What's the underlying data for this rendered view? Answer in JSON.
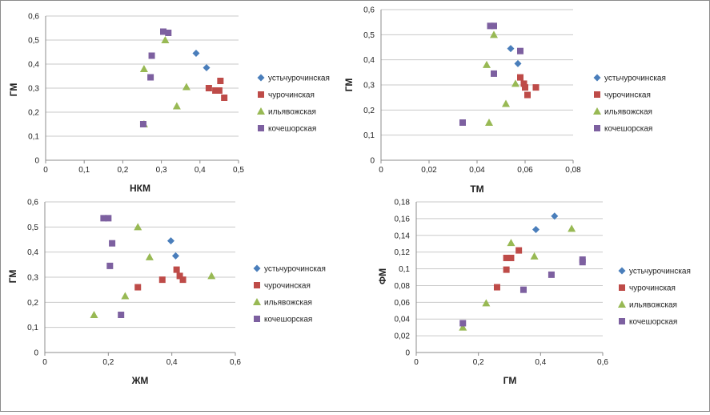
{
  "colors": {
    "устьчурочинская": "#4a7ebb",
    "чурочинская": "#be4b48",
    "ильявожская": "#98b954",
    "кочешорская": "#7d60a0",
    "grid": "#c9c9c9",
    "axis": "#8c8c8c"
  },
  "markers": {
    "устьчурочинская": "diamond",
    "чурочинская": "square",
    "ильявожская": "triangle",
    "кочешорская": "square"
  },
  "chart_data": [
    {
      "type": "scatter",
      "xlabel": "НКМ",
      "ylabel": "ГМ",
      "xlim": [
        0,
        0.5
      ],
      "ylim": [
        0,
        0.6
      ],
      "xticks": [
        "0",
        "0,1",
        "0,2",
        "0,3",
        "0,4",
        "0,5"
      ],
      "yticks": [
        "0",
        "0,1",
        "0,2",
        "0,3",
        "0,4",
        "0,5",
        "0,6"
      ],
      "grid": "horizontal",
      "legend": "right",
      "series": [
        {
          "name": "устьчурочинская",
          "points": [
            [
              0.39,
              0.445
            ],
            [
              0.417,
              0.385
            ]
          ]
        },
        {
          "name": "чурочинская",
          "points": [
            [
              0.423,
              0.3
            ],
            [
              0.44,
              0.29
            ],
            [
              0.45,
              0.29
            ],
            [
              0.453,
              0.33
            ],
            [
              0.463,
              0.26
            ]
          ]
        },
        {
          "name": "ильявожская",
          "points": [
            [
              0.255,
              0.15
            ],
            [
              0.255,
              0.38
            ],
            [
              0.31,
              0.5
            ],
            [
              0.34,
              0.225
            ],
            [
              0.365,
              0.305
            ]
          ]
        },
        {
          "name": "кочешорская",
          "points": [
            [
              0.253,
              0.15
            ],
            [
              0.272,
              0.345
            ],
            [
              0.275,
              0.435
            ],
            [
              0.305,
              0.535
            ],
            [
              0.318,
              0.53
            ]
          ]
        }
      ]
    },
    {
      "type": "scatter",
      "xlabel": "ТМ",
      "ylabel": "ГМ",
      "xlim": [
        0,
        0.08
      ],
      "ylim": [
        0,
        0.6
      ],
      "xticks": [
        "0",
        "0,02",
        "0,04",
        "0,06",
        "0,08"
      ],
      "yticks": [
        "0",
        "0,1",
        "0,2",
        "0,3",
        "0,4",
        "0,5",
        "0,6"
      ],
      "grid": "horizontal",
      "legend": "right",
      "series": [
        {
          "name": "устьчурочинская",
          "points": [
            [
              0.054,
              0.445
            ],
            [
              0.057,
              0.385
            ]
          ]
        },
        {
          "name": "чурочинская",
          "points": [
            [
              0.058,
              0.33
            ],
            [
              0.0595,
              0.305
            ],
            [
              0.06,
              0.29
            ],
            [
              0.061,
              0.26
            ],
            [
              0.0645,
              0.29
            ]
          ]
        },
        {
          "name": "ильявожская",
          "points": [
            [
              0.044,
              0.38
            ],
            [
              0.045,
              0.15
            ],
            [
              0.047,
              0.5
            ],
            [
              0.052,
              0.225
            ],
            [
              0.056,
              0.305
            ]
          ]
        },
        {
          "name": "кочешорская",
          "points": [
            [
              0.034,
              0.15
            ],
            [
              0.0455,
              0.535
            ],
            [
              0.047,
              0.535
            ],
            [
              0.047,
              0.345
            ],
            [
              0.058,
              0.435
            ]
          ]
        }
      ]
    },
    {
      "type": "scatter",
      "xlabel": "ЖМ",
      "ylabel": "ГМ",
      "xlim": [
        0,
        0.6
      ],
      "ylim": [
        0,
        0.6
      ],
      "xticks": [
        "0",
        "0,2",
        "0,4",
        "0,6"
      ],
      "yticks": [
        "0",
        "0,1",
        "0,2",
        "0,3",
        "0,4",
        "0,5",
        "0,6"
      ],
      "grid": "horizontal",
      "legend": "right",
      "series": [
        {
          "name": "устьчурочинская",
          "points": [
            [
              0.397,
              0.445
            ],
            [
              0.412,
              0.385
            ]
          ]
        },
        {
          "name": "чурочинская",
          "points": [
            [
              0.293,
              0.26
            ],
            [
              0.37,
              0.29
            ],
            [
              0.415,
              0.33
            ],
            [
              0.425,
              0.305
            ],
            [
              0.435,
              0.29
            ]
          ]
        },
        {
          "name": "ильявожская",
          "points": [
            [
              0.155,
              0.15
            ],
            [
              0.253,
              0.225
            ],
            [
              0.293,
              0.5
            ],
            [
              0.33,
              0.38
            ],
            [
              0.525,
              0.305
            ]
          ]
        },
        {
          "name": "кочешорская",
          "points": [
            [
              0.185,
              0.535
            ],
            [
              0.2,
              0.535
            ],
            [
              0.205,
              0.345
            ],
            [
              0.212,
              0.435
            ],
            [
              0.24,
              0.15
            ]
          ]
        }
      ]
    },
    {
      "type": "scatter",
      "xlabel": "ГМ",
      "ylabel": "ФМ",
      "xlim": [
        0,
        0.6
      ],
      "ylim": [
        0,
        0.18
      ],
      "xticks": [
        "0",
        "0,2",
        "0,4",
        "0,6"
      ],
      "yticks": [
        "0",
        "0,02",
        "0,04",
        "0,06",
        "0,08",
        "0,1",
        "0,12",
        "0,14",
        "0,16",
        "0,18"
      ],
      "grid": "horizontal",
      "legend": "right",
      "series": [
        {
          "name": "устьчурочинская",
          "points": [
            [
              0.385,
              0.147
            ],
            [
              0.445,
              0.163
            ]
          ]
        },
        {
          "name": "чурочинская",
          "points": [
            [
              0.26,
              0.078
            ],
            [
              0.29,
              0.099
            ],
            [
              0.29,
              0.113
            ],
            [
              0.305,
              0.113
            ],
            [
              0.33,
              0.122
            ]
          ]
        },
        {
          "name": "ильявожская",
          "points": [
            [
              0.15,
              0.03
            ],
            [
              0.225,
              0.059
            ],
            [
              0.305,
              0.131
            ],
            [
              0.38,
              0.115
            ],
            [
              0.5,
              0.148
            ]
          ]
        },
        {
          "name": "кочешорская",
          "points": [
            [
              0.15,
              0.035
            ],
            [
              0.345,
              0.075
            ],
            [
              0.435,
              0.093
            ],
            [
              0.535,
              0.108
            ],
            [
              0.535,
              0.111
            ]
          ]
        }
      ]
    }
  ]
}
